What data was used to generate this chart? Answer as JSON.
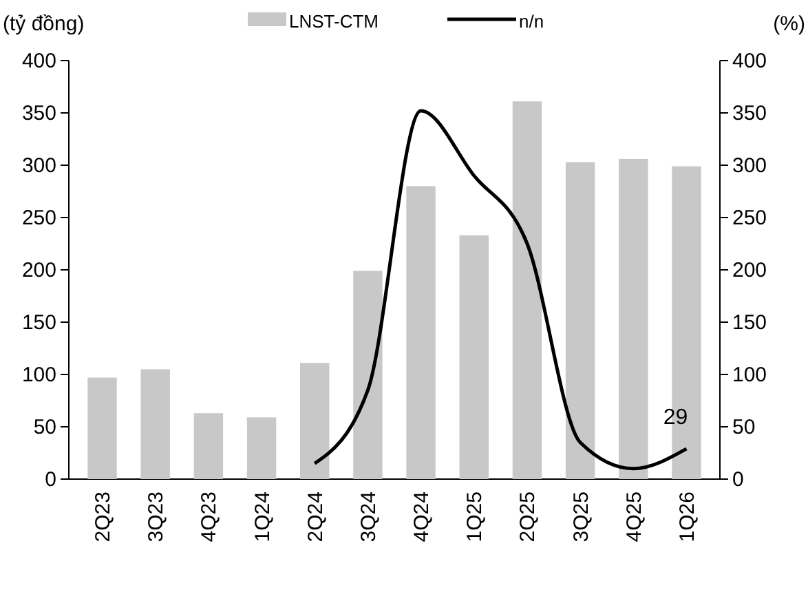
{
  "chart_data": {
    "type": "bar",
    "ylabel": "(tỷ đồng)",
    "y2label": "(%)",
    "categories": [
      "2Q23",
      "3Q23",
      "4Q23",
      "1Q24",
      "2Q24",
      "3Q24",
      "4Q24",
      "1Q25",
      "2Q25",
      "3Q25",
      "4Q25",
      "1Q26"
    ],
    "series": [
      {
        "name": "LNST-CTM",
        "color": "#c8c8c8",
        "values": [
          97,
          105,
          63,
          59,
          111,
          199,
          280,
          233,
          361,
          303,
          306,
          299
        ]
      },
      {
        "name": "n/n",
        "type": "line",
        "axis": "y2",
        "color": "#000000",
        "values": [
          null,
          null,
          null,
          null,
          15,
          85,
          352,
          290,
          225,
          35,
          10,
          29
        ],
        "value_labels": [
          null,
          null,
          null,
          null,
          null,
          null,
          null,
          null,
          null,
          null,
          null,
          "29"
        ]
      }
    ],
    "ylim": [
      0,
      400
    ],
    "yticks": [
      0,
      50,
      100,
      150,
      200,
      250,
      300,
      350,
      400
    ],
    "y2lim": [
      0,
      400
    ],
    "y2ticks": [
      0,
      50,
      100,
      150,
      200,
      250,
      300,
      350,
      400
    ],
    "legend": "top",
    "grid": false
  }
}
